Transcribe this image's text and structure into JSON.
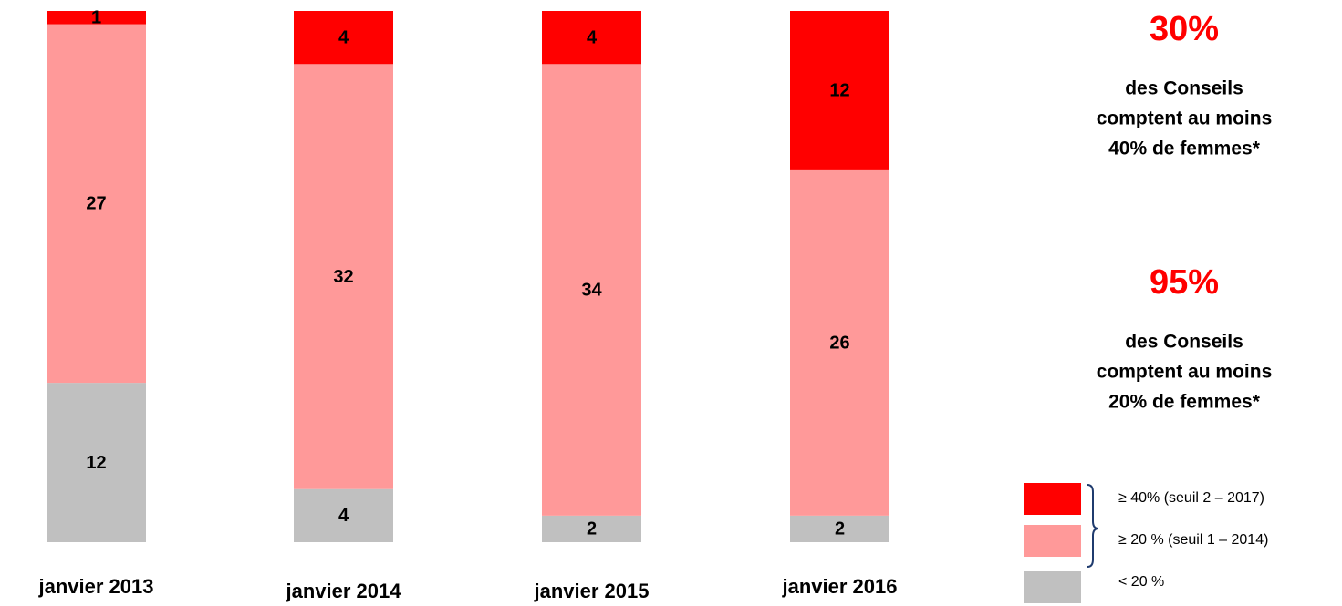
{
  "chart_data": {
    "type": "stacked_bar",
    "categories": [
      "janvier 2013",
      "janvier 2014",
      "janvier 2015",
      "janvier 2016"
    ],
    "series": [
      {
        "name": "< 20 %",
        "color": "#c0c0c0",
        "values": [
          12,
          4,
          2,
          2
        ]
      },
      {
        "name": "≥ 20 % (seuil 1 – 2014)",
        "color": "#ff9999",
        "values": [
          27,
          32,
          34,
          26
        ]
      },
      {
        "name": "≥ 40% (seuil 2 – 2017)",
        "color": "#ff0000",
        "values": [
          1,
          4,
          4,
          12
        ]
      }
    ],
    "annotations": [
      {
        "headline": "30%",
        "lines": [
          "des Conseils",
          "comptent au moins",
          "40% de femmes*"
        ]
      },
      {
        "headline": "95%",
        "lines": [
          "des Conseils",
          "comptent au moins",
          "20% de femmes*"
        ]
      }
    ]
  }
}
